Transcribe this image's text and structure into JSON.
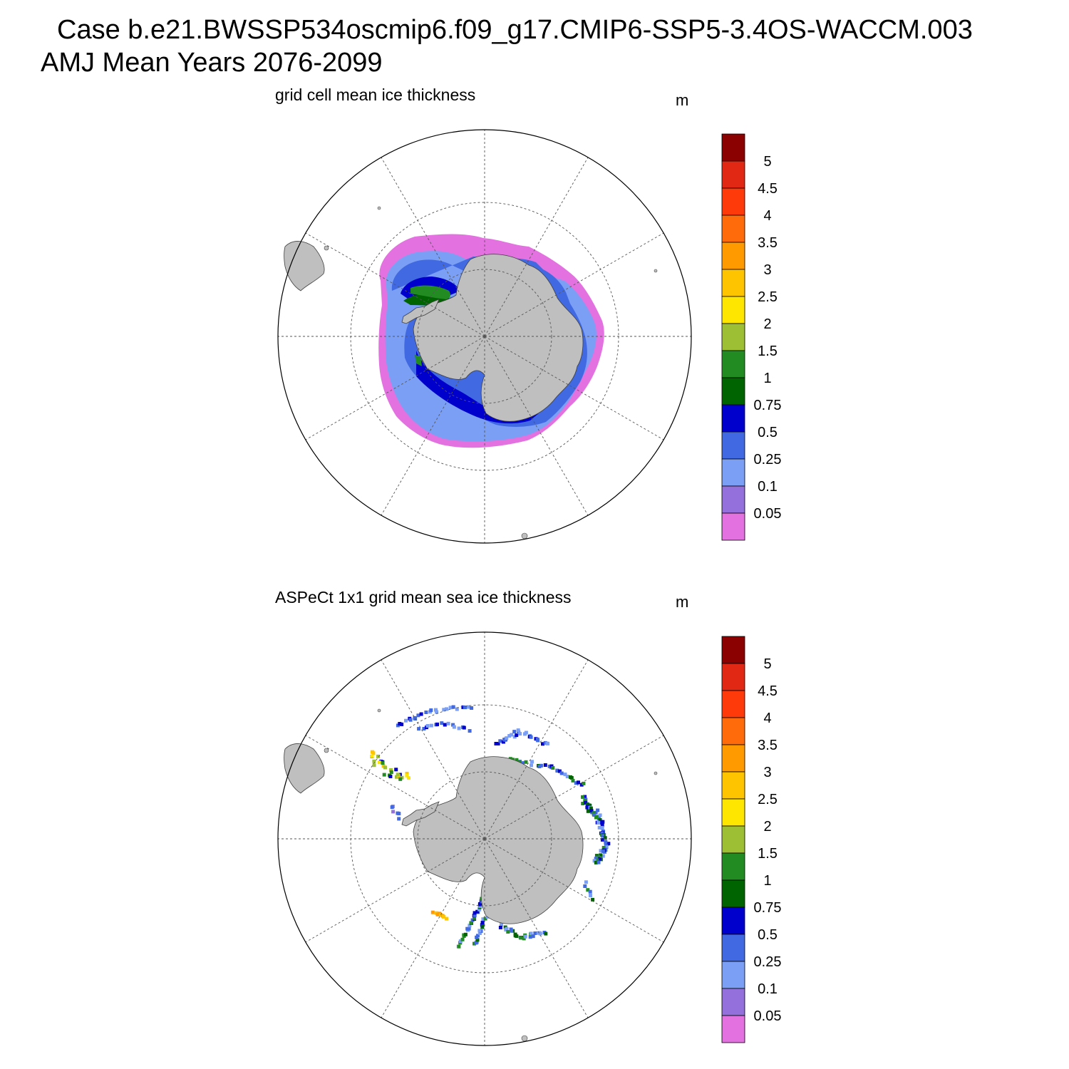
{
  "header": {
    "line1": "Case b.e21.BWSSP534oscmip6.f09_g17.CMIP6-SSP5-3.4OS-WACCM.003",
    "line2": "AMJ Mean   Years 2076-2099"
  },
  "panels": [
    {
      "title": "grid cell mean ice thickness",
      "units": "m"
    },
    {
      "title": "ASPeCt 1x1 grid mean sea ice thickness",
      "units": "m"
    }
  ],
  "colorbar": {
    "labels": [
      "5",
      "4.5",
      "4",
      "3.5",
      "3",
      "2.5",
      "2",
      "1.5",
      "1",
      "0.75",
      "0.5",
      "0.25",
      "0.1",
      "0.05"
    ],
    "colors": [
      "#8b0000",
      "#e02814",
      "#ff3a0a",
      "#ff6a0a",
      "#ff9a00",
      "#ffc400",
      "#ffe600",
      "#9cbf34",
      "#228b22",
      "#006400",
      "#0000cd",
      "#4169e1",
      "#7b9ff5",
      "#9370db",
      "#e372e0"
    ]
  },
  "map_colors": {
    "land": "#bfbfbf",
    "outline": "#404040"
  }
}
